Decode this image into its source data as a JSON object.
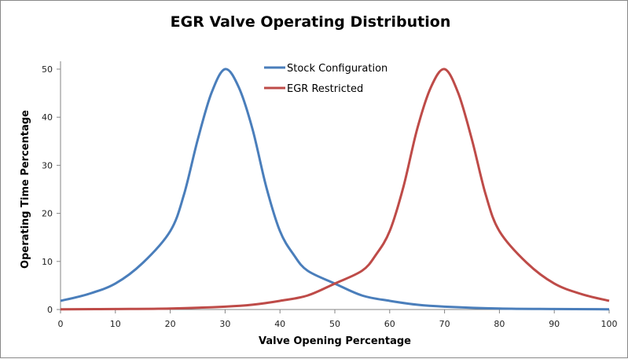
{
  "chart_data": {
    "type": "line",
    "title": "EGR Valve Operating Distribution",
    "xlabel": "Valve Opening Percentage",
    "ylabel": "Operating Time Percentage",
    "xlim": [
      0,
      100
    ],
    "ylim": [
      0,
      50
    ],
    "xticks": [
      0,
      10,
      20,
      30,
      40,
      50,
      60,
      70,
      80,
      90,
      100
    ],
    "yticks": [
      0,
      10,
      20,
      30,
      40,
      50
    ],
    "grid": false,
    "legend_position": "top-center",
    "series": [
      {
        "name": "Stock Configuration",
        "color": "#4a7ebb",
        "x": [
          0,
          5,
          10,
          15,
          20,
          22.5,
          25,
          27.5,
          30,
          32.5,
          35,
          37.5,
          40,
          42.5,
          45,
          50,
          55,
          60,
          65,
          70,
          80,
          90,
          100
        ],
        "y": [
          1.8,
          3.2,
          5.4,
          9.7,
          16.3,
          23.9,
          35.3,
          45,
          50,
          46.2,
          37.5,
          25.5,
          16.3,
          11.4,
          8.1,
          5.4,
          2.9,
          1.8,
          1.0,
          0.6,
          0.2,
          0.1,
          0.05
        ]
      },
      {
        "name": "EGR Restricted",
        "color": "#be4b48",
        "x": [
          0,
          10,
          20,
          30,
          35,
          40,
          45,
          50,
          55,
          57.5,
          60,
          62.5,
          65,
          67.5,
          70,
          72.5,
          75,
          77.5,
          80,
          85,
          90,
          95,
          100
        ],
        "y": [
          0.05,
          0.1,
          0.2,
          0.6,
          1.0,
          1.8,
          2.9,
          5.4,
          8.1,
          11.4,
          16.3,
          25.5,
          37.5,
          46.2,
          50,
          45,
          35.3,
          23.9,
          16.3,
          9.7,
          5.4,
          3.2,
          1.8
        ]
      }
    ]
  }
}
